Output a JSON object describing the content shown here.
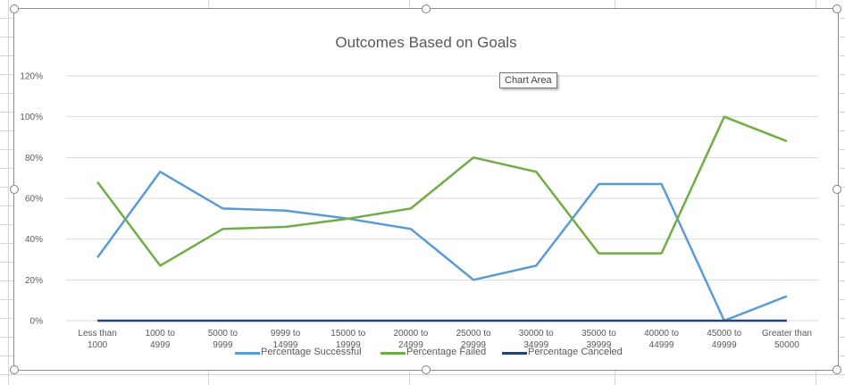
{
  "chart_data": {
    "type": "line",
    "title": "Outcomes Based on Goals",
    "categories": [
      "Less than 1000",
      "1000 to 4999",
      "5000 to 9999",
      "9999 to 14999",
      "15000 to 19999",
      "20000 to 24999",
      "25000 to 29999",
      "30000 to 34999",
      "35000 to 39999",
      "40000 to 44999",
      "45000 to 49999",
      "Greater than 50000"
    ],
    "y_ticks": [
      "0%",
      "20%",
      "40%",
      "60%",
      "80%",
      "100%",
      "120%"
    ],
    "ylim": [
      0,
      1.2
    ],
    "grid": true,
    "legend_position": "bottom",
    "series": [
      {
        "name": "Percentage Successful",
        "color": "#5b9bd5",
        "values": [
          0.31,
          0.73,
          0.55,
          0.54,
          0.5,
          0.45,
          0.2,
          0.27,
          0.67,
          0.67,
          0.0,
          0.12
        ]
      },
      {
        "name": "Percentage Failed",
        "color": "#70ad47",
        "values": [
          0.68,
          0.27,
          0.45,
          0.46,
          0.5,
          0.55,
          0.8,
          0.73,
          0.33,
          0.33,
          1.0,
          0.88
        ]
      },
      {
        "name": "Percentage Canceled",
        "color": "#264478",
        "values": [
          0,
          0,
          0,
          0,
          0,
          0,
          0,
          0,
          0,
          0,
          0,
          0
        ]
      }
    ]
  },
  "tooltip": "Chart Area"
}
